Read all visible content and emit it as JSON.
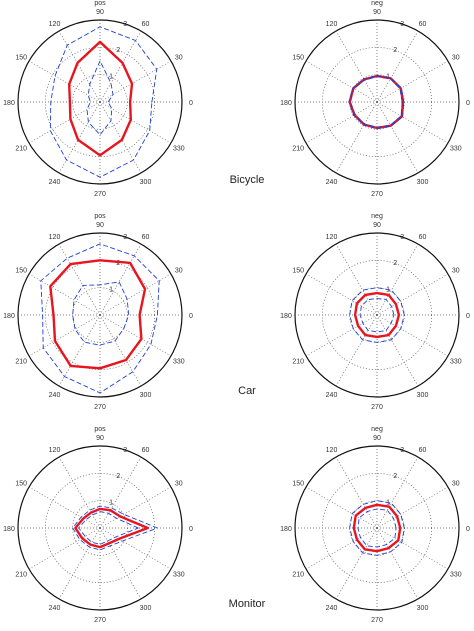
{
  "row_labels": [
    "Bicycle",
    "Car",
    "Monitor"
  ],
  "colors": {
    "mean": "#e8141e",
    "band": "#1f3fd6",
    "grid": "#555555"
  },
  "chart_data": [
    {
      "type": "polar",
      "row": "Bicycle",
      "unit_label": "pos",
      "angle_labels_deg": [
        90,
        60,
        30,
        0,
        330,
        300,
        270,
        240,
        210,
        180,
        150,
        120
      ],
      "radial_ticks": [
        1,
        2,
        3
      ],
      "rlim": [
        0,
        3
      ],
      "theta_deg": [
        0,
        30,
        60,
        90,
        120,
        150,
        180,
        210,
        240,
        270,
        300,
        330
      ],
      "series": [
        {
          "style": "solid-red",
          "r": [
            1.1,
            1.35,
            1.65,
            2.2,
            1.65,
            1.3,
            1.1,
            1.25,
            1.6,
            1.95,
            1.6,
            1.3
          ]
        },
        {
          "style": "dashed-blue-upper",
          "r": [
            1.9,
            2.4,
            2.6,
            2.75,
            2.4,
            1.9,
            1.8,
            2.1,
            2.45,
            2.75,
            2.45,
            2.1
          ]
        },
        {
          "style": "dashed-blue-lower",
          "r": [
            0.3,
            0.55,
            0.8,
            1.5,
            0.75,
            0.5,
            0.35,
            0.55,
            0.85,
            1.2,
            0.8,
            0.5
          ]
        }
      ]
    },
    {
      "type": "polar",
      "row": "Bicycle",
      "unit_label": "neg",
      "angle_labels_deg": [
        90,
        60,
        30,
        0,
        330,
        300,
        270,
        240,
        210,
        180,
        150,
        120
      ],
      "radial_ticks": [
        1,
        2,
        3
      ],
      "rlim": [
        0,
        3
      ],
      "theta_deg": [
        0,
        30,
        60,
        90,
        120,
        150,
        180,
        210,
        240,
        270,
        300,
        330
      ],
      "series": [
        {
          "style": "solid-red",
          "r": [
            0.95,
            1.0,
            1.0,
            0.95,
            0.95,
            1.0,
            1.0,
            0.95,
            0.95,
            0.95,
            1.0,
            1.05
          ]
        },
        {
          "style": "dashed-blue-upper",
          "r": [
            0.98,
            1.03,
            1.02,
            0.97,
            0.98,
            1.02,
            1.03,
            0.98,
            0.97,
            0.98,
            1.02,
            1.08
          ]
        },
        {
          "style": "dashed-blue-lower",
          "r": [
            0.92,
            0.97,
            0.98,
            0.93,
            0.92,
            0.97,
            0.97,
            0.92,
            0.93,
            0.92,
            0.98,
            1.02
          ]
        }
      ]
    },
    {
      "type": "polar",
      "row": "Car",
      "unit_label": "pos",
      "angle_labels_deg": [
        90,
        60,
        30,
        0,
        330,
        300,
        270,
        240,
        210,
        180,
        150,
        120
      ],
      "radial_ticks": [
        1,
        2,
        3
      ],
      "rlim": [
        0,
        3
      ],
      "theta_deg": [
        0,
        30,
        60,
        90,
        120,
        150,
        180,
        210,
        240,
        270,
        300,
        330
      ],
      "series": [
        {
          "style": "solid-red",
          "r": [
            1.45,
            1.9,
            2.2,
            2.0,
            2.15,
            2.1,
            1.7,
            1.9,
            2.15,
            1.95,
            1.9,
            1.75
          ]
        },
        {
          "style": "dashed-blue-upper",
          "r": [
            2.1,
            2.5,
            2.5,
            2.6,
            2.4,
            2.5,
            2.1,
            2.4,
            2.6,
            2.85,
            2.4,
            2.15
          ]
        },
        {
          "style": "dashed-blue-lower",
          "r": [
            1.05,
            1.15,
            1.4,
            1.1,
            1.25,
            1.1,
            1.0,
            1.05,
            1.15,
            1.1,
            1.1,
            1.0
          ]
        }
      ]
    },
    {
      "type": "polar",
      "row": "Car",
      "unit_label": "neg",
      "angle_labels_deg": [
        90,
        60,
        30,
        0,
        330,
        300,
        270,
        240,
        210,
        180,
        150,
        120
      ],
      "radial_ticks": [
        1,
        2,
        3
      ],
      "rlim": [
        0,
        3
      ],
      "theta_deg": [
        0,
        30,
        60,
        90,
        120,
        150,
        180,
        210,
        240,
        270,
        300,
        330
      ],
      "series": [
        {
          "style": "solid-red",
          "r": [
            0.8,
            0.8,
            0.85,
            0.8,
            0.85,
            0.85,
            0.8,
            0.8,
            0.85,
            0.8,
            0.85,
            0.8
          ]
        },
        {
          "style": "dashed-blue-upper",
          "r": [
            1.0,
            1.0,
            1.05,
            1.0,
            1.05,
            1.05,
            1.0,
            1.0,
            1.05,
            1.0,
            1.05,
            1.0
          ]
        },
        {
          "style": "dashed-blue-lower",
          "r": [
            0.62,
            0.62,
            0.66,
            0.6,
            0.65,
            0.66,
            0.62,
            0.6,
            0.65,
            0.62,
            0.66,
            0.6
          ]
        }
      ]
    },
    {
      "type": "polar",
      "row": "Monitor",
      "unit_label": "pos",
      "angle_labels_deg": [
        90,
        60,
        30,
        0,
        330,
        300,
        270,
        240,
        210,
        180,
        150,
        120
      ],
      "radial_ticks": [
        1,
        2,
        3
      ],
      "rlim": [
        0,
        3
      ],
      "theta_deg": [
        0,
        30,
        60,
        90,
        120,
        150,
        180,
        210,
        240,
        270,
        300,
        330
      ],
      "series": [
        {
          "style": "solid-red",
          "r": [
            1.75,
            0.85,
            0.75,
            0.7,
            0.65,
            0.7,
            0.9,
            0.75,
            0.7,
            0.7,
            0.65,
            0.8
          ]
        },
        {
          "style": "dashed-blue-upper",
          "r": [
            2.1,
            1.0,
            0.85,
            0.8,
            0.75,
            0.8,
            1.0,
            0.85,
            0.8,
            0.8,
            0.75,
            0.95
          ]
        },
        {
          "style": "dashed-blue-lower",
          "r": [
            1.4,
            0.7,
            0.62,
            0.6,
            0.55,
            0.6,
            0.78,
            0.62,
            0.6,
            0.6,
            0.55,
            0.66
          ]
        }
      ]
    },
    {
      "type": "polar",
      "row": "Monitor",
      "unit_label": "neg",
      "angle_labels_deg": [
        90,
        60,
        30,
        0,
        330,
        300,
        270,
        240,
        210,
        180,
        150,
        120
      ],
      "radial_ticks": [
        1,
        2,
        3
      ],
      "rlim": [
        0,
        3
      ],
      "theta_deg": [
        0,
        30,
        60,
        90,
        120,
        150,
        180,
        210,
        240,
        270,
        300,
        330
      ],
      "series": [
        {
          "style": "solid-red",
          "r": [
            0.85,
            0.85,
            0.9,
            0.85,
            0.85,
            0.9,
            0.85,
            0.85,
            0.9,
            0.85,
            0.85,
            0.9
          ]
        },
        {
          "style": "dashed-blue-upper",
          "r": [
            1.0,
            1.0,
            1.05,
            1.0,
            1.0,
            1.05,
            1.0,
            1.0,
            1.05,
            1.0,
            1.0,
            1.05
          ]
        },
        {
          "style": "dashed-blue-lower",
          "r": [
            0.7,
            0.7,
            0.75,
            0.7,
            0.7,
            0.75,
            0.7,
            0.7,
            0.75,
            0.7,
            0.7,
            0.75
          ]
        }
      ]
    }
  ]
}
